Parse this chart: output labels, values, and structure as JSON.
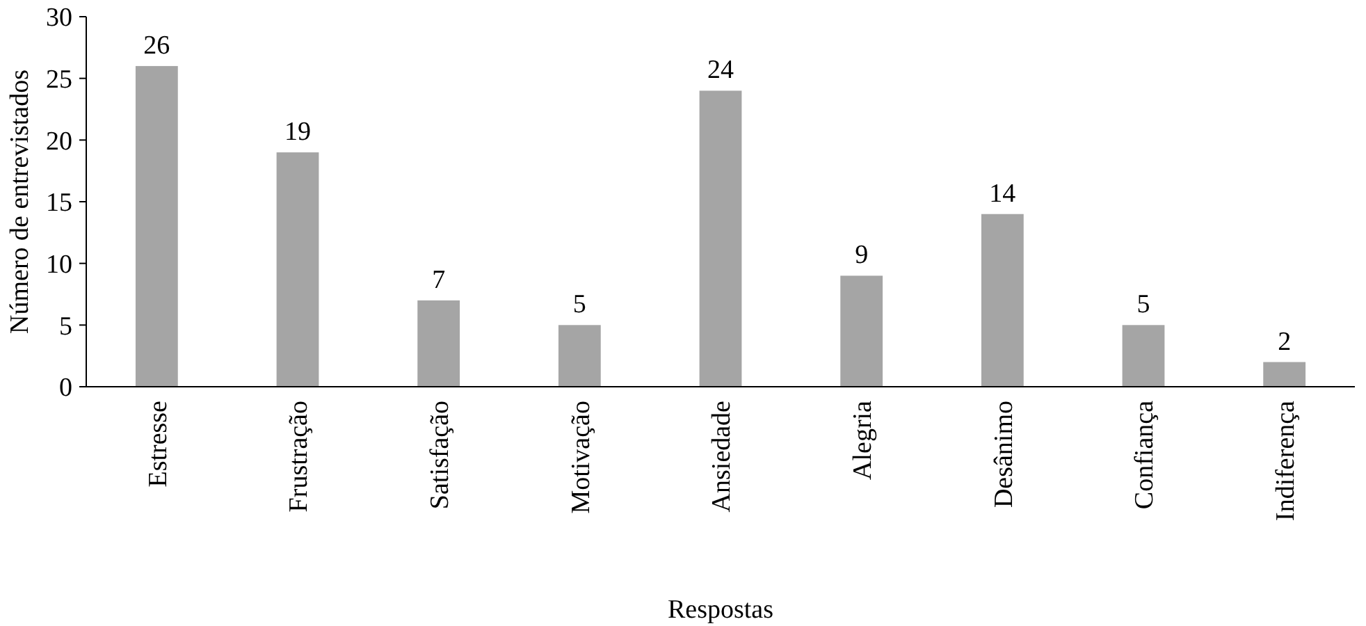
{
  "chart_data": {
    "type": "bar",
    "xlabel": "Respostas",
    "ylabel": "Número de entrevistados",
    "categories": [
      "Estresse",
      "Frustração",
      "Satisfação",
      "Motivação",
      "Ansiedade",
      "Alegria",
      "Desânimo",
      "Confiança",
      "Indiferença"
    ],
    "values": [
      26,
      19,
      7,
      5,
      24,
      9,
      14,
      5,
      2
    ],
    "color": "#a5a5a5",
    "ylim": [
      0,
      30
    ],
    "yticks": [
      0,
      5,
      10,
      15,
      20,
      25,
      30
    ],
    "data_labels": true
  }
}
